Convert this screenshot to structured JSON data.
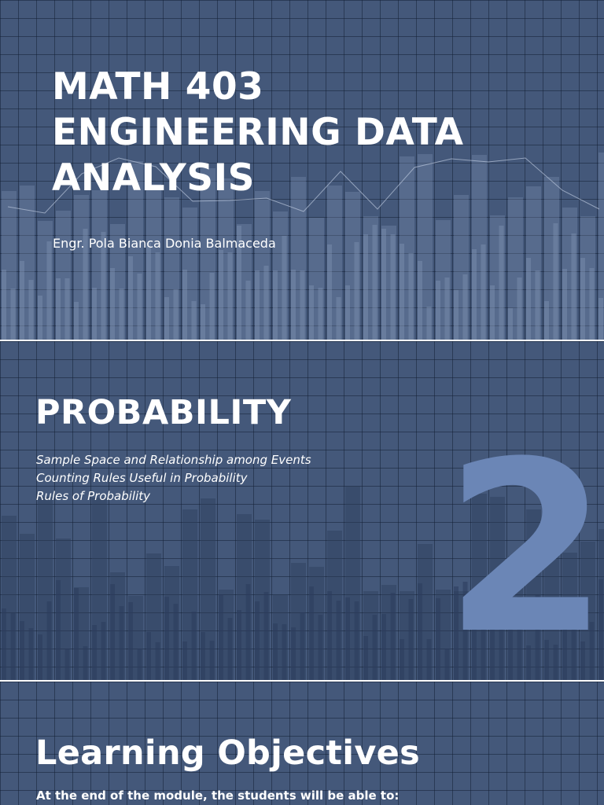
{
  "slide1": {
    "title_lines": [
      "MATH 403",
      "ENGINEERING DATA",
      "ANALYSIS"
    ],
    "author": "Engr. Pola Bianca Donia Balmaceda"
  },
  "slide2": {
    "title": "PROBABILITY",
    "topics": [
      "Sample Space and Relationship among Events",
      "Counting Rules Useful in Probability",
      "Rules of Probability"
    ],
    "number": "2"
  },
  "slide3": {
    "title": "Learning Objectives",
    "intro": "At the end of the module, the students will be able to:"
  },
  "colors": {
    "background": "#44587a",
    "bars": "#8a9dbd",
    "accent_number": "#6b86b6",
    "text": "#ffffff"
  }
}
